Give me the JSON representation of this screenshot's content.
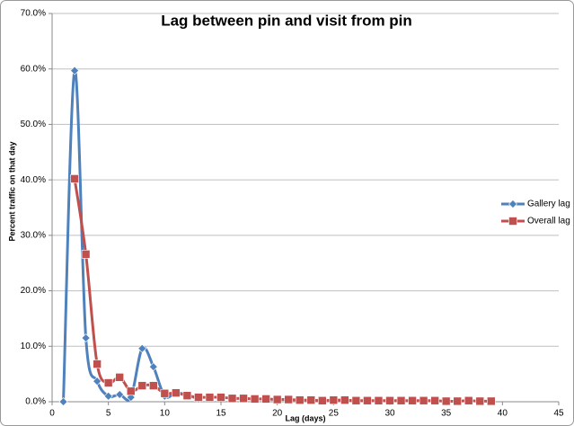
{
  "chart_data": {
    "type": "line",
    "title": "Lag between pin and visit from pin",
    "x_label": "Lag (days)",
    "y_label": "Percent traffic on that day",
    "xlim": [
      0,
      45
    ],
    "xticks": [
      0,
      5,
      10,
      15,
      20,
      25,
      30,
      35,
      40,
      45
    ],
    "ylim": [
      0,
      70
    ],
    "yticks": [
      {
        "value": 0,
        "label": "0.0%"
      },
      {
        "value": 10,
        "label": "10.0%"
      },
      {
        "value": 20,
        "label": "20.0%"
      },
      {
        "value": 30,
        "label": "30.0%"
      },
      {
        "value": 40,
        "label": "40.0%"
      },
      {
        "value": 50,
        "label": "50.0%"
      },
      {
        "value": 60,
        "label": "60.0%"
      },
      {
        "value": 70,
        "label": "70.0%"
      }
    ],
    "grid": true,
    "legend": "right",
    "series": [
      {
        "name": "Gallery lag",
        "color": "#4f81bd",
        "marker": "diamond",
        "x": [
          1,
          2,
          3,
          4,
          5,
          6,
          7,
          8,
          9,
          10,
          11,
          12,
          13
        ],
        "values": [
          0,
          59.7,
          11.5,
          3.7,
          1.0,
          1.3,
          0.8,
          9.6,
          6.3,
          1.0,
          1.6,
          1.2,
          0.5
        ]
      },
      {
        "name": "Overall lag",
        "color": "#c0504d",
        "marker": "square",
        "x": [
          2,
          3,
          4,
          5,
          6,
          7,
          8,
          9,
          10,
          11,
          12,
          13,
          14,
          15,
          16,
          17,
          18,
          19,
          20,
          21,
          22,
          23,
          24,
          25,
          26,
          27,
          28,
          29,
          30,
          31,
          32,
          33,
          34,
          35,
          36,
          37,
          38,
          39
        ],
        "values": [
          40.2,
          26.6,
          6.8,
          3.4,
          4.4,
          1.9,
          2.9,
          2.9,
          1.5,
          1.6,
          1.1,
          0.8,
          0.8,
          0.8,
          0.6,
          0.6,
          0.5,
          0.5,
          0.4,
          0.4,
          0.3,
          0.3,
          0.2,
          0.3,
          0.3,
          0.2,
          0.2,
          0.2,
          0.2,
          0.2,
          0.2,
          0.2,
          0.2,
          0.1,
          0.1,
          0.2,
          0.1,
          0.1
        ]
      }
    ]
  }
}
